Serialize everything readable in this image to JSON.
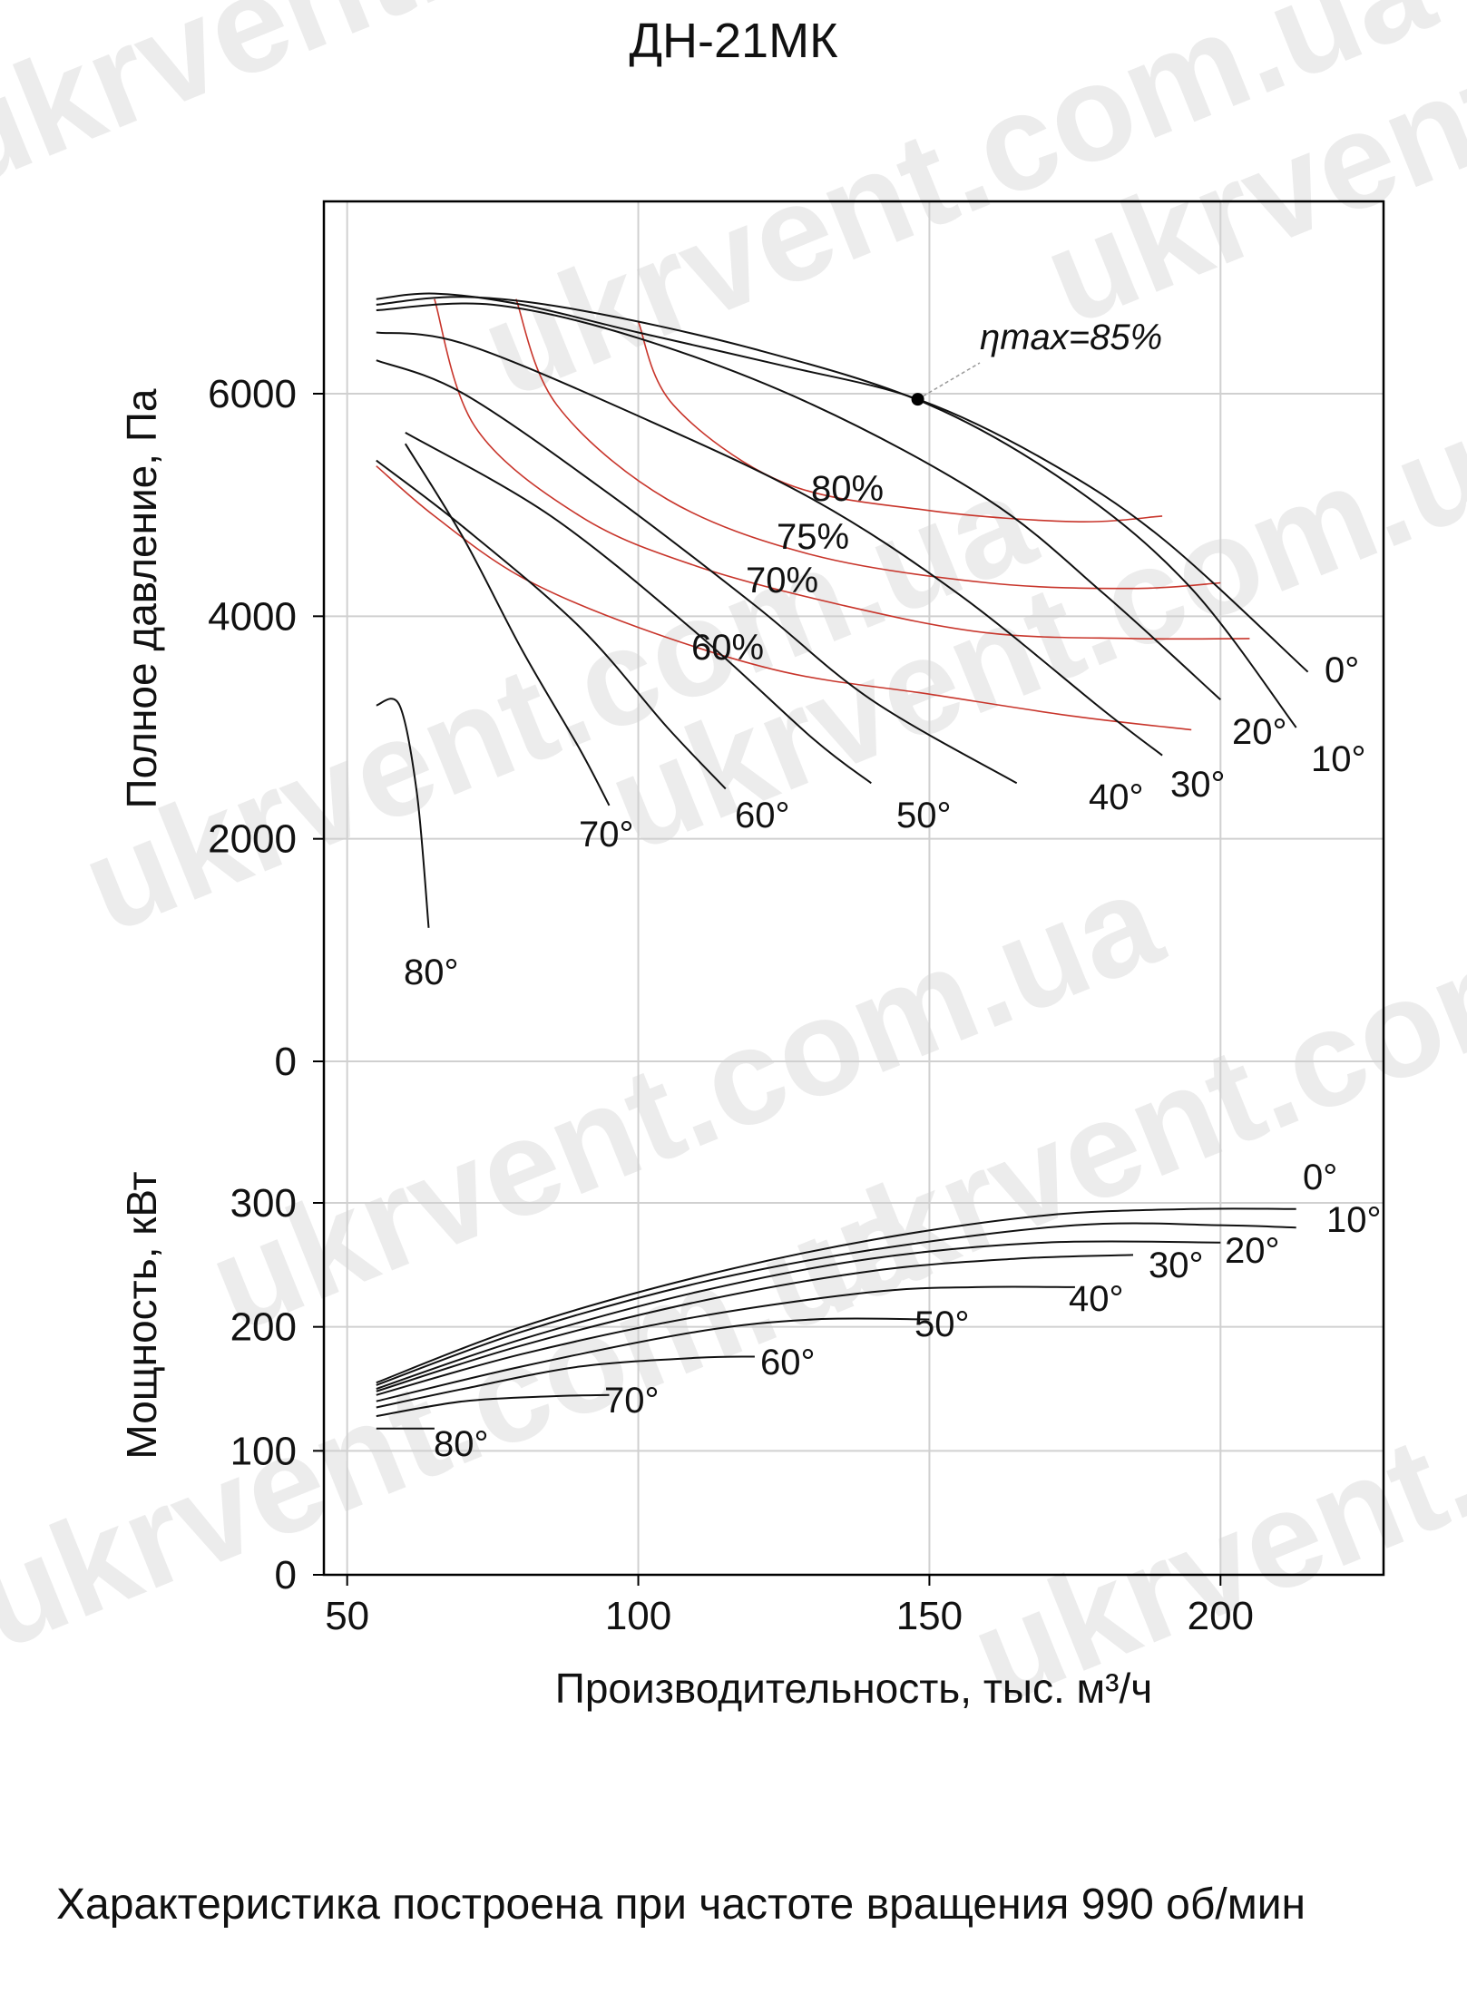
{
  "page_title": "ДН-21МК",
  "caption": "Характеристика построена при частоте вращения 990 об/мин",
  "watermark": "ukrvent.com.ua",
  "colors": {
    "curve": "#111111",
    "efficiency": "#c8352b",
    "grid": "#d0d0d0",
    "frame": "#000000"
  },
  "chart_data": [
    {
      "type": "line",
      "title": "",
      "xlabel": "Производительность, тыс. м³/ч",
      "ylabel": "Полное давление, Па",
      "xlim": [
        46,
        228
      ],
      "ylim": [
        0,
        7600
      ],
      "x_ticks": [
        "50",
        "100",
        "150",
        "200"
      ],
      "y_ticks": [
        "0",
        "2000",
        "4000",
        "6000"
      ],
      "grid": true,
      "eta_max_label": "ηmax=85%",
      "eta_max_point": [
        148,
        5950
      ],
      "series": [
        {
          "name": "0°",
          "points": [
            [
              55,
              6850
            ],
            [
              65,
              6900
            ],
            [
              80,
              6800
            ],
            [
              100,
              6550
            ],
            [
              125,
              6250
            ],
            [
              148,
              5950
            ],
            [
              170,
              5400
            ],
            [
              190,
              4700
            ],
            [
              215,
              3500
            ]
          ]
        },
        {
          "name": "10°",
          "points": [
            [
              55,
              6800
            ],
            [
              70,
              6870
            ],
            [
              90,
              6750
            ],
            [
              120,
              6400
            ],
            [
              150,
              5900
            ],
            [
              175,
              5150
            ],
            [
              195,
              4250
            ],
            [
              213,
              3000
            ]
          ]
        },
        {
          "name": "20°",
          "points": [
            [
              55,
              6750
            ],
            [
              75,
              6800
            ],
            [
              100,
              6500
            ],
            [
              130,
              5900
            ],
            [
              160,
              5050
            ],
            [
              180,
              4200
            ],
            [
              200,
              3250
            ]
          ]
        },
        {
          "name": "30°",
          "points": [
            [
              55,
              6550
            ],
            [
              70,
              6450
            ],
            [
              100,
              5800
            ],
            [
              130,
              5050
            ],
            [
              155,
              4200
            ],
            [
              180,
              3150
            ],
            [
              190,
              2750
            ]
          ]
        },
        {
          "name": "40°",
          "points": [
            [
              55,
              6300
            ],
            [
              70,
              6000
            ],
            [
              95,
              5100
            ],
            [
              120,
              4100
            ],
            [
              140,
              3250
            ],
            [
              165,
              2500
            ]
          ]
        },
        {
          "name": "50°",
          "points": [
            [
              60,
              5650
            ],
            [
              85,
              4900
            ],
            [
              110,
              3850
            ],
            [
              130,
              2900
            ],
            [
              140,
              2500
            ]
          ]
        },
        {
          "name": "60°",
          "points": [
            [
              55,
              5400
            ],
            [
              70,
              4800
            ],
            [
              90,
              3900
            ],
            [
              105,
              3000
            ],
            [
              115,
              2450
            ]
          ]
        },
        {
          "name": "70°",
          "points": [
            [
              60,
              5550
            ],
            [
              70,
              4700
            ],
            [
              80,
              3700
            ],
            [
              90,
              2800
            ],
            [
              95,
              2300
            ]
          ]
        },
        {
          "name": "80°",
          "points": [
            [
              55,
              3200
            ],
            [
              59,
              3200
            ],
            [
              62,
              2400
            ],
            [
              64,
              1200
            ]
          ]
        }
      ],
      "efficiency_curves": [
        {
          "name": "60%",
          "points": [
            [
              55,
              5350
            ],
            [
              65,
              4900
            ],
            [
              80,
              4350
            ],
            [
              100,
              3900
            ],
            [
              125,
              3500
            ],
            [
              150,
              3300
            ],
            [
              175,
              3100
            ],
            [
              195,
              2980
            ]
          ]
        },
        {
          "name": "70%",
          "points": [
            [
              65,
              6850
            ],
            [
              72,
              5700
            ],
            [
              90,
              4900
            ],
            [
              110,
              4450
            ],
            [
              135,
              4100
            ],
            [
              160,
              3850
            ],
            [
              185,
              3800
            ],
            [
              205,
              3800
            ]
          ]
        },
        {
          "name": "75%",
          "points": [
            [
              79,
              6850
            ],
            [
              86,
              5900
            ],
            [
              105,
              5050
            ],
            [
              130,
              4550
            ],
            [
              160,
              4300
            ],
            [
              185,
              4250
            ],
            [
              200,
              4300
            ]
          ]
        },
        {
          "name": "80%",
          "points": [
            [
              100,
              6650
            ],
            [
              106,
              5900
            ],
            [
              125,
              5200
            ],
            [
              150,
              4950
            ],
            [
              175,
              4850
            ],
            [
              190,
              4900
            ]
          ]
        }
      ],
      "series_labels": [
        "0°",
        "10°",
        "20°",
        "30°",
        "40°",
        "50°",
        "60°",
        "70°",
        "80°"
      ],
      "efficiency_labels": [
        "60%",
        "70%",
        "75%",
        "80%"
      ]
    },
    {
      "type": "line",
      "title": "",
      "xlabel": "Производительность, тыс. м³/ч",
      "ylabel": "Мощность, кВт",
      "xlim": [
        46,
        228
      ],
      "ylim": [
        0,
        350
      ],
      "y_ticks": [
        "0",
        "100",
        "200",
        "300"
      ],
      "grid": true,
      "series": [
        {
          "name": "0°",
          "points": [
            [
              55,
              155
            ],
            [
              80,
              200
            ],
            [
              110,
              240
            ],
            [
              140,
              270
            ],
            [
              170,
              290
            ],
            [
              195,
              295
            ],
            [
              213,
              295
            ]
          ]
        },
        {
          "name": "10°",
          "points": [
            [
              55,
              153
            ],
            [
              80,
              196
            ],
            [
              110,
              235
            ],
            [
              140,
              262
            ],
            [
              175,
              282
            ],
            [
              200,
              282
            ],
            [
              213,
              280
            ]
          ]
        },
        {
          "name": "20°",
          "points": [
            [
              55,
              150
            ],
            [
              80,
              190
            ],
            [
              110,
              228
            ],
            [
              140,
              255
            ],
            [
              170,
              268
            ],
            [
              200,
              268
            ]
          ]
        },
        {
          "name": "30°",
          "points": [
            [
              55,
              148
            ],
            [
              80,
              185
            ],
            [
              110,
              220
            ],
            [
              140,
              245
            ],
            [
              165,
              255
            ],
            [
              185,
              258
            ]
          ]
        },
        {
          "name": "40°",
          "points": [
            [
              55,
              145
            ],
            [
              80,
              178
            ],
            [
              110,
              208
            ],
            [
              140,
              228
            ],
            [
              158,
              232
            ],
            [
              175,
              232
            ]
          ]
        },
        {
          "name": "50°",
          "points": [
            [
              55,
              140
            ],
            [
              80,
              168
            ],
            [
              110,
              196
            ],
            [
              130,
              206
            ],
            [
              150,
              206
            ]
          ]
        },
        {
          "name": "60°",
          "points": [
            [
              55,
              135
            ],
            [
              70,
              150
            ],
            [
              90,
              168
            ],
            [
              110,
              175
            ],
            [
              120,
              176
            ]
          ]
        },
        {
          "name": "70°",
          "points": [
            [
              55,
              128
            ],
            [
              70,
              140
            ],
            [
              85,
              144
            ],
            [
              95,
              145
            ]
          ]
        },
        {
          "name": "80°",
          "points": [
            [
              55,
              118
            ],
            [
              60,
              118
            ],
            [
              65,
              118
            ]
          ]
        }
      ],
      "series_labels": [
        "0°",
        "10°",
        "20°",
        "30°",
        "40°",
        "50°",
        "60°",
        "70°",
        "80°"
      ]
    }
  ]
}
